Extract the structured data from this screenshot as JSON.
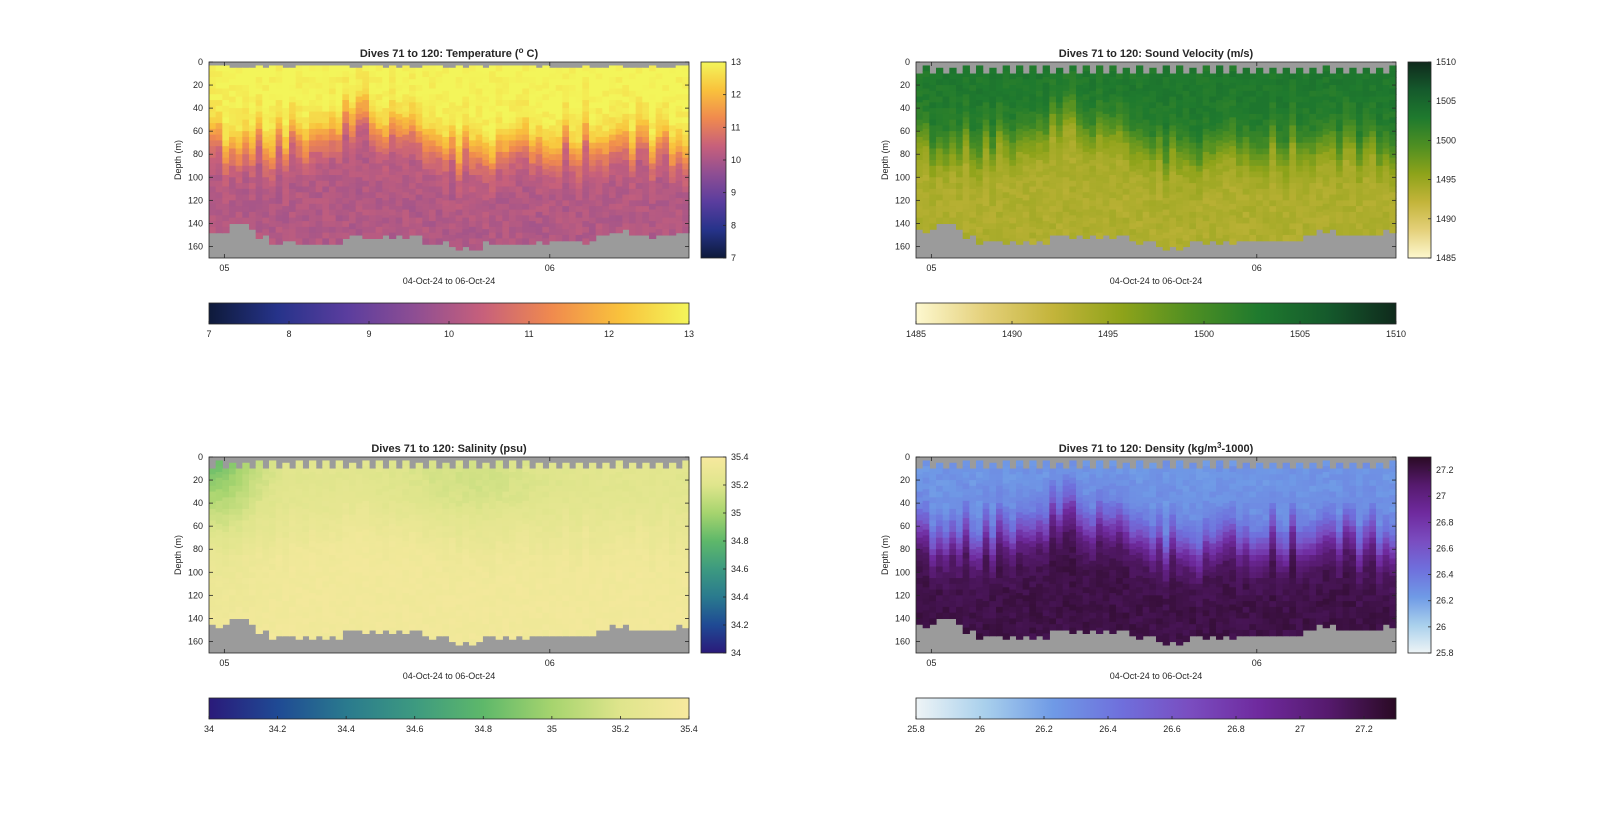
{
  "figure": {
    "background": "#ffffff"
  },
  "chart_data": [
    {
      "type": "heatmap",
      "title": "Dives 71 to 120: Temperature (",
      "title_sup": "o",
      "title_tail": " C)",
      "xlabel": "04-Oct-24 to 06-Oct-24",
      "ylabel": "Depth (m)",
      "x_ticks": [
        "05",
        "06"
      ],
      "y_ticks": [
        "0",
        "20",
        "40",
        "60",
        "80",
        "100",
        "120",
        "140",
        "160"
      ],
      "ylim": [
        0,
        170
      ],
      "y_reversed": true,
      "clim": [
        7,
        13
      ],
      "colorbar_ticks": [
        "7",
        "8",
        "9",
        "10",
        "11",
        "12",
        "13"
      ],
      "colormap": [
        "#0e1a3a",
        "#26338a",
        "#5a3d9e",
        "#8e4e93",
        "#c7607b",
        "#f08a4e",
        "#f9c23c",
        "#f3f55a"
      ],
      "profile_key": "temperature",
      "no_data_color": "#9b9b9b"
    },
    {
      "type": "heatmap",
      "title": "Dives 71 to 120: Sound Velocity (m/s)",
      "xlabel": "04-Oct-24 to 06-Oct-24",
      "ylabel": "Depth (m)",
      "x_ticks": [
        "05",
        "06"
      ],
      "y_ticks": [
        "0",
        "20",
        "40",
        "60",
        "80",
        "100",
        "120",
        "140",
        "160"
      ],
      "ylim": [
        0,
        170
      ],
      "y_reversed": true,
      "clim": [
        1485,
        1510
      ],
      "colorbar_ticks": [
        "1485",
        "1490",
        "1495",
        "1500",
        "1505",
        "1510"
      ],
      "colormap": [
        "#fdf8cf",
        "#e4d07a",
        "#c3b43a",
        "#8ea31a",
        "#4f8f22",
        "#1f7a2e",
        "#155a2c",
        "#0f2a1c"
      ],
      "profile_key": "velocity",
      "no_data_color": "#9b9b9b"
    },
    {
      "type": "heatmap",
      "title": "Dives 71 to 120: Salinity (psu)",
      "xlabel": "04-Oct-24 to 06-Oct-24",
      "ylabel": "Depth (m)",
      "x_ticks": [
        "05",
        "06"
      ],
      "y_ticks": [
        "0",
        "20",
        "40",
        "60",
        "80",
        "100",
        "120",
        "140",
        "160"
      ],
      "ylim": [
        0,
        170
      ],
      "y_reversed": true,
      "clim": [
        34,
        35.4
      ],
      "colorbar_ticks": [
        "34",
        "34.2",
        "34.4",
        "34.6",
        "34.8",
        "35",
        "35.2",
        "35.4"
      ],
      "colormap": [
        "#2a1a7a",
        "#1f4a94",
        "#2a7a8e",
        "#3d9a80",
        "#5eb86a",
        "#a6d46e",
        "#dfe58c",
        "#f7e99e"
      ],
      "profile_key": "salinity",
      "no_data_color": "#9b9b9b"
    },
    {
      "type": "heatmap",
      "title": "Dives 71 to 120: Density (kg/m",
      "title_sup": "3",
      "title_tail": "-1000)",
      "xlabel": "04-Oct-24 to 06-Oct-24",
      "ylabel": "Depth (m)",
      "x_ticks": [
        "05",
        "06"
      ],
      "y_ticks": [
        "0",
        "20",
        "40",
        "60",
        "80",
        "100",
        "120",
        "140",
        "160"
      ],
      "ylim": [
        0,
        170
      ],
      "y_reversed": true,
      "clim": [
        25.8,
        27.3
      ],
      "colorbar_ticks": [
        "25.8",
        "26",
        "26.2",
        "26.4",
        "26.6",
        "26.8",
        "27",
        "27.2"
      ],
      "colormap": [
        "#eef4f6",
        "#a9d0ec",
        "#6f9ae6",
        "#6f6fdc",
        "#7a4dc0",
        "#6f2a9e",
        "#561a6e",
        "#2a0a24"
      ],
      "profile_key": "density",
      "no_data_color": "#9b9b9b"
    }
  ]
}
